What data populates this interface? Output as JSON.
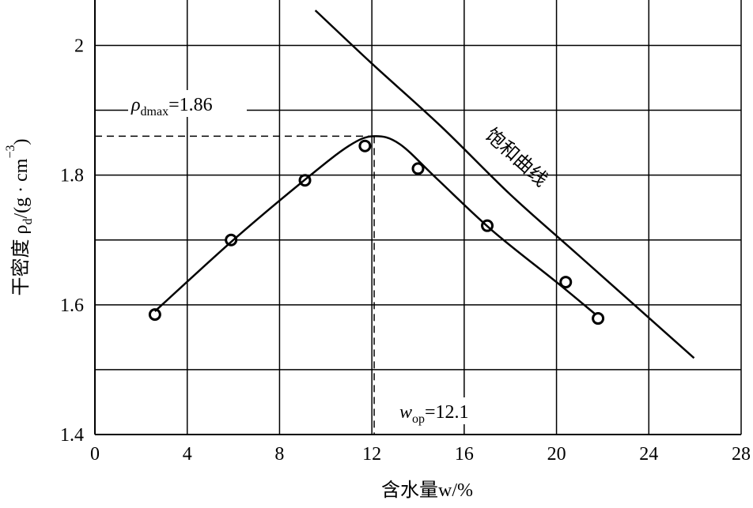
{
  "chart_data": {
    "type": "compaction",
    "x_label": "含水量w/%",
    "y_label": [
      {
        "text": "干密度 ρ"
      },
      {
        "text": "d",
        "sub": true
      },
      {
        "text": "/(g · cm"
      },
      {
        "text": "−3",
        "sup": true
      },
      {
        "text": ")"
      }
    ],
    "xlim": [
      0,
      28
    ],
    "xticks": [
      0,
      4,
      8,
      12,
      16,
      20,
      24,
      28
    ],
    "ylim": [
      1.4,
      2.07
    ],
    "yticks": [
      1.4,
      1.6,
      1.8,
      2.0
    ],
    "minor_yticks": [
      1.5,
      1.7,
      1.9
    ],
    "grid": true,
    "series": [
      {
        "kind": "points",
        "x": [
          2.6,
          5.9,
          9.1,
          11.7,
          14.0,
          17.0,
          20.4,
          21.8
        ],
        "values": [
          1.585,
          1.7,
          1.792,
          1.845,
          1.81,
          1.722,
          1.635,
          1.579
        ]
      },
      {
        "kind": "curve",
        "x": [
          2.6,
          6.0,
          9.0,
          11.0,
          12.1,
          13.2,
          14.8,
          17.2,
          20.0,
          21.7
        ],
        "values": [
          1.59,
          1.7,
          1.79,
          1.845,
          1.86,
          1.848,
          1.795,
          1.715,
          1.635,
          1.585
        ]
      },
      {
        "kind": "curve",
        "name": "饱和曲线",
        "x": [
          9.55,
          12.0,
          15.0,
          18.0,
          21.0,
          25.96
        ],
        "values": [
          2.054,
          1.972,
          1.875,
          1.77,
          1.675,
          1.518
        ]
      }
    ],
    "optimum": {
      "y": {
        "symbol": "ρ",
        "subscript": "dmax",
        "label": "=1.86",
        "value": 1.86
      },
      "x": {
        "symbol": "w",
        "subscript": "op",
        "label": "=12.1",
        "value": 12.1
      }
    }
  }
}
